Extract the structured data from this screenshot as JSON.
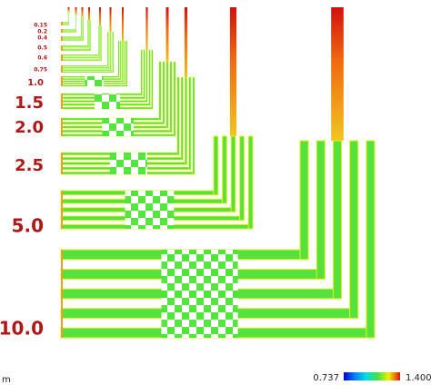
{
  "structure_labels": [
    "10.0",
    "5.0",
    "2.5",
    "2.0",
    "1.5",
    "1.0",
    "0.75",
    "0.6",
    "0.5",
    "0.4",
    "0.2",
    "0.15"
  ],
  "unit_label": "m",
  "colorbar": {
    "min_label": "0.737",
    "max_label": "1.400"
  }
}
